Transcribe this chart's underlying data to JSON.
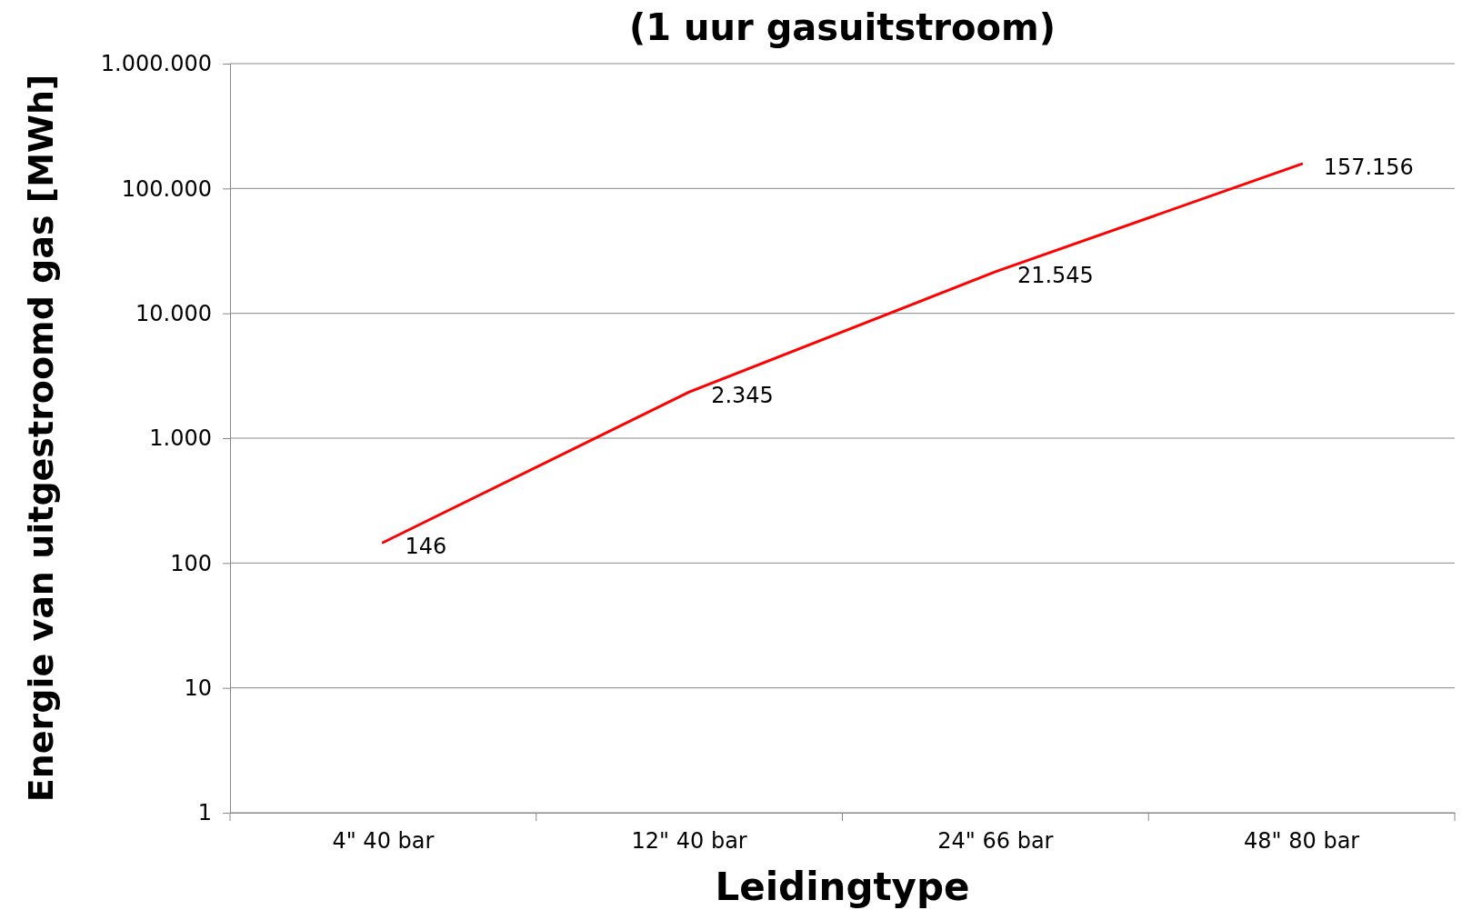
{
  "chart_data": {
    "type": "line",
    "title": "(1 uur gasuitstroom)",
    "xlabel": "Leidingtype",
    "ylabel": "Energie van uitgestroomd gas [MWh]",
    "categories": [
      "4\" 40 bar",
      "12\" 40 bar",
      "24\" 66 bar",
      "48\" 80 bar"
    ],
    "series": [
      {
        "color": "#ff0000",
        "values": [
          146,
          2345,
          21545,
          157156
        ],
        "value_labels": [
          "146",
          "2.345",
          "21.545",
          "157.156"
        ]
      }
    ],
    "log": true,
    "ylim": [
      1,
      1000000
    ],
    "yticks": [
      1,
      10,
      100,
      {
        "value": 1000,
        "label": "1.000"
      },
      {
        "value": 10000,
        "label": "10.000"
      },
      {
        "value": 100000,
        "label": "100.000"
      },
      {
        "value": 1000000,
        "label": "1.000.000"
      }
    ],
    "grid": "y",
    "marker": "none",
    "line_style": "solid"
  }
}
